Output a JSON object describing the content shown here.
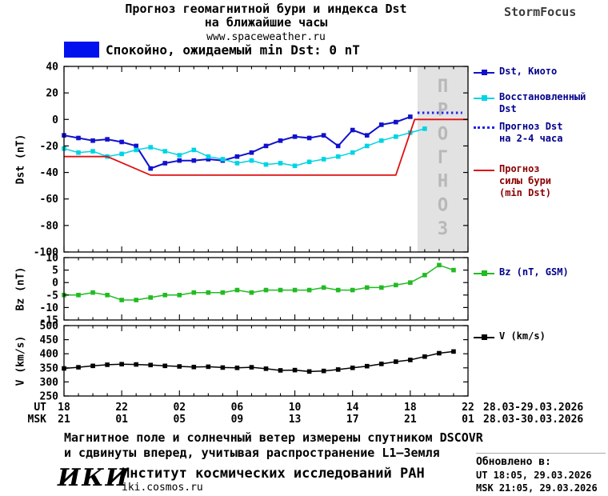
{
  "header": {
    "title_line1": "Прогноз геомагнитной бури и индекса Dst",
    "title_line2": "на ближайшие часы",
    "website": "www.spaceweather.ru",
    "brand": "StormFocus"
  },
  "status_banner": {
    "swatch_color": "#0011ee",
    "text": "Спокойно, ожидаемый min Dst: 0 nT"
  },
  "chart_data": {
    "type": "line",
    "panels": [
      {
        "name": "dst",
        "ylabel": "Dst (nT)",
        "ylim": [
          -100,
          40
        ],
        "yticks": [
          40,
          20,
          0,
          -20,
          -40,
          -60,
          -80,
          -100
        ],
        "forecast_region": {
          "start_hour": 24.5,
          "end_hour": 28,
          "label": "ПРОГНОЗ",
          "fill": "#e2e2e2",
          "label_color": "#b8b8b8"
        },
        "series": [
          {
            "name": "Dst, Киото",
            "color": "#1111cc",
            "marker": "square",
            "line_width": 2,
            "x": [
              0,
              1,
              2,
              3,
              4,
              5,
              6,
              7,
              8,
              9,
              10,
              11,
              12,
              13,
              14,
              15,
              16,
              17,
              18,
              19,
              20,
              21,
              22,
              23,
              24
            ],
            "y": [
              -12,
              -14,
              -16,
              -15,
              -17,
              -20,
              -37,
              -33,
              -31,
              -31,
              -30,
              -31,
              -28,
              -25,
              -20,
              -16,
              -13,
              -14,
              -12,
              -20,
              -8,
              -12,
              -4,
              -2,
              2
            ]
          },
          {
            "name": "Восстановленный Dst",
            "color": "#00d4e4",
            "marker": "square",
            "line_width": 1.5,
            "x": [
              0,
              1,
              2,
              3,
              4,
              5,
              6,
              7,
              8,
              9,
              10,
              11,
              12,
              13,
              14,
              15,
              16,
              17,
              18,
              19,
              20,
              21,
              22,
              23,
              24,
              25
            ],
            "y": [
              -22,
              -25,
              -24,
              -28,
              -26,
              -23,
              -21,
              -24,
              -27,
              -23,
              -28,
              -30,
              -33,
              -31,
              -34,
              -33,
              -35,
              -32,
              -30,
              -28,
              -25,
              -20,
              -16,
              -13,
              -10,
              -7
            ]
          },
          {
            "name": "Прогноз Dst на 2-4 часа",
            "color": "#2222ee",
            "style": "dotted",
            "line_width": 3,
            "x": [
              24.5,
              27.6
            ],
            "y": [
              5,
              5
            ]
          },
          {
            "name": "Прогноз силы бури (min Dst)",
            "color": "#dd1111",
            "line_width": 1.8,
            "x": [
              0,
              3,
              6,
              23,
              24.3,
              28
            ],
            "y": [
              -28,
              -28,
              -42,
              -42,
              0,
              0
            ]
          }
        ]
      },
      {
        "name": "bz",
        "ylabel": "Bz (nT)",
        "ylim": [
          -15,
          10
        ],
        "yticks": [
          10,
          5,
          0,
          -5,
          -10,
          -15
        ],
        "series": [
          {
            "name": "Bz (nT, GSM)",
            "color": "#22bb22",
            "marker": "square",
            "line_width": 1.5,
            "x": [
              0,
              1,
              2,
              3,
              4,
              5,
              6,
              7,
              8,
              9,
              10,
              11,
              12,
              13,
              14,
              15,
              16,
              17,
              18,
              19,
              20,
              21,
              22,
              23,
              24,
              25,
              26,
              27
            ],
            "y": [
              -5,
              -5,
              -4,
              -5,
              -7,
              -7,
              -6,
              -5,
              -5,
              -4,
              -4,
              -4,
              -3,
              -4,
              -3,
              -3,
              -3,
              -3,
              -2,
              -3,
              -3,
              -2,
              -2,
              -1,
              0,
              3,
              7,
              5
            ]
          }
        ]
      },
      {
        "name": "v",
        "ylabel": "V (km/s)",
        "ylim": [
          250,
          500
        ],
        "yticks": [
          500,
          450,
          400,
          350,
          300,
          250
        ],
        "series": [
          {
            "name": "V (km/s)",
            "color": "#000000",
            "marker": "square",
            "line_width": 1.5,
            "x": [
              0,
              1,
              2,
              3,
              4,
              5,
              6,
              7,
              8,
              9,
              10,
              11,
              12,
              13,
              14,
              15,
              16,
              17,
              18,
              19,
              20,
              21,
              22,
              23,
              24,
              25,
              26,
              27
            ],
            "y": [
              348,
              352,
              357,
              361,
              363,
              362,
              360,
              357,
              355,
              353,
              354,
              351,
              350,
              352,
              347,
              341,
              342,
              337,
              339,
              344,
              350,
              356,
              364,
              372,
              378,
              390,
              402,
              408
            ]
          }
        ]
      }
    ],
    "xaxis": {
      "xlim": [
        0,
        28
      ],
      "minor_tick_step": 1,
      "tick_hours": [
        0,
        4,
        8,
        12,
        16,
        20,
        24,
        28
      ],
      "ut_label": "UT",
      "msk_label": "MSK",
      "ut_ticks": [
        "18",
        "22",
        "02",
        "06",
        "10",
        "14",
        "18",
        "22"
      ],
      "msk_ticks": [
        "21",
        "01",
        "05",
        "09",
        "13",
        "17",
        "21",
        "01"
      ],
      "ut_date_range": "28.03-29.03.2026",
      "msk_date_range": "28.03-30.03.2026"
    }
  },
  "legend": {
    "entries": [
      {
        "label": "Dst, Киото",
        "color": "#1111cc",
        "text_color": "#00008b"
      },
      {
        "label": "Восстановленный Dst",
        "color": "#00d4e4",
        "text_color": "#00008b"
      },
      {
        "label": "Прогноз Dst на 2-4 часа",
        "color": "#2222ee",
        "text_color": "#00008b"
      },
      {
        "label": "Прогноз силы бури (min Dst)",
        "color": "#dd1111",
        "text_color": "#8b0000"
      },
      {
        "label": "Bz (nT, GSM)",
        "color": "#22bb22",
        "text_color": "#00008b"
      },
      {
        "label": "V (km/s)",
        "color": "#000000",
        "text_color": "#000000"
      }
    ]
  },
  "footnote": {
    "line1": "Магнитное поле и солнечный ветер измерены спутником DSCOVR",
    "line2": "и сдвинуты вперед, учитывая распространение L1—Земля"
  },
  "footer": {
    "logo": "ИКИ",
    "institute": "Институт космических исследований РАН",
    "website": "iki.cosmos.ru"
  },
  "updated": {
    "title": "Обновлено в:",
    "ut": "UT  18:05, 29.03.2026",
    "msk": "MSK 21:05, 29.03.2026"
  }
}
